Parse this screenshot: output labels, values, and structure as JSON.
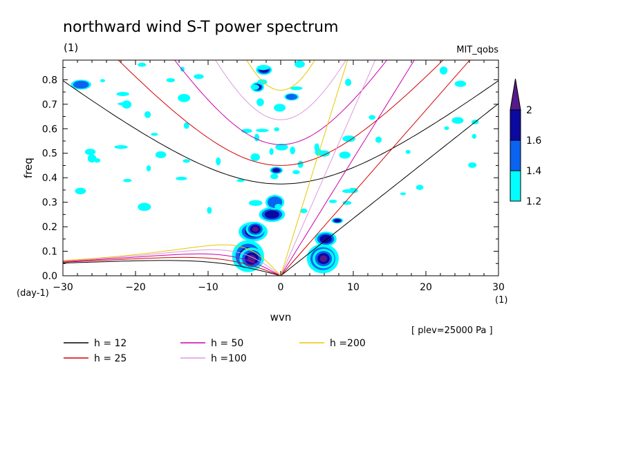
{
  "chart_data": {
    "type": "contour",
    "title": "northward wind S-T power spectrum",
    "subtitle_left": "(1)",
    "subtitle_right": "MIT_qobs",
    "xlabel": "wvn",
    "ylabel": "freq",
    "x_unit": "(1)",
    "y_unit": "(day-1)",
    "annotation": "[ plev=25000 Pa ]",
    "xlim": [
      -30,
      30
    ],
    "ylim": [
      0,
      0.88
    ],
    "x_ticks": [
      -30,
      -20,
      -10,
      0,
      10,
      20,
      30
    ],
    "x_tick_labels": [
      "−30",
      "−20",
      "−10",
      "0",
      "10",
      "20",
      "30"
    ],
    "y_ticks": [
      0,
      0.1,
      0.2,
      0.3,
      0.4,
      0.5,
      0.6,
      0.7,
      0.8
    ],
    "y_tick_labels": [
      "0.0",
      "0.1",
      "0.2",
      "0.3",
      "0.4",
      "0.5",
      "0.6",
      "0.7",
      "0.8"
    ],
    "colorbar": {
      "levels": [
        1.2,
        1.4,
        1.6,
        2
      ],
      "labels": [
        "1.2",
        "1.4",
        "1.6",
        "2"
      ],
      "colors": [
        "#00ffff",
        "#0a64f0",
        "#0a0aa0",
        "#551a8b"
      ]
    },
    "dispersion_curves": [
      {
        "name": "h = 12",
        "h": 12,
        "color": "#000000"
      },
      {
        "name": "h = 25",
        "h": 25,
        "color": "#d20000"
      },
      {
        "name": "h = 50",
        "h": 50,
        "color": "#cc00aa"
      },
      {
        "name": "h =100",
        "h": 100,
        "color": "#dd99dd"
      },
      {
        "name": "h =200",
        "h": 200,
        "color": "#e6c800"
      }
    ],
    "blobs": [
      {
        "x": -4.5,
        "y": 0.08,
        "rx": 2.2,
        "ry": 0.065,
        "level": 3
      },
      {
        "x": -4.0,
        "y": 0.07,
        "rx": 1.7,
        "ry": 0.045,
        "level": 4
      },
      {
        "x": -3.8,
        "y": 0.18,
        "rx": 2.0,
        "ry": 0.04,
        "level": 3
      },
      {
        "x": -3.5,
        "y": 0.19,
        "rx": 1.3,
        "ry": 0.03,
        "level": 4
      },
      {
        "x": -1.2,
        "y": 0.25,
        "rx": 1.8,
        "ry": 0.03,
        "level": 3
      },
      {
        "x": -0.8,
        "y": 0.3,
        "rx": 1.3,
        "ry": 0.03,
        "level": 2
      },
      {
        "x": 5.8,
        "y": 0.07,
        "rx": 2.2,
        "ry": 0.06,
        "level": 3
      },
      {
        "x": 5.9,
        "y": 0.07,
        "rx": 1.5,
        "ry": 0.04,
        "level": 4
      },
      {
        "x": 6.2,
        "y": 0.15,
        "rx": 1.5,
        "ry": 0.03,
        "level": 3
      },
      {
        "x": -2.3,
        "y": 0.84,
        "rx": 1.1,
        "ry": 0.02,
        "level": 3
      },
      {
        "x": -3.2,
        "y": 0.77,
        "rx": 0.9,
        "ry": 0.02,
        "level": 4
      },
      {
        "x": -0.6,
        "y": 0.43,
        "rx": 0.9,
        "ry": 0.015,
        "level": 3
      },
      {
        "x": 7.8,
        "y": 0.225,
        "rx": 0.8,
        "ry": 0.012,
        "level": 3
      },
      {
        "x": 1.5,
        "y": 0.73,
        "rx": 1.0,
        "ry": 0.015,
        "level": 2
      },
      {
        "x": -27.5,
        "y": 0.78,
        "rx": 1.4,
        "ry": 0.02,
        "level": 2
      }
    ]
  }
}
